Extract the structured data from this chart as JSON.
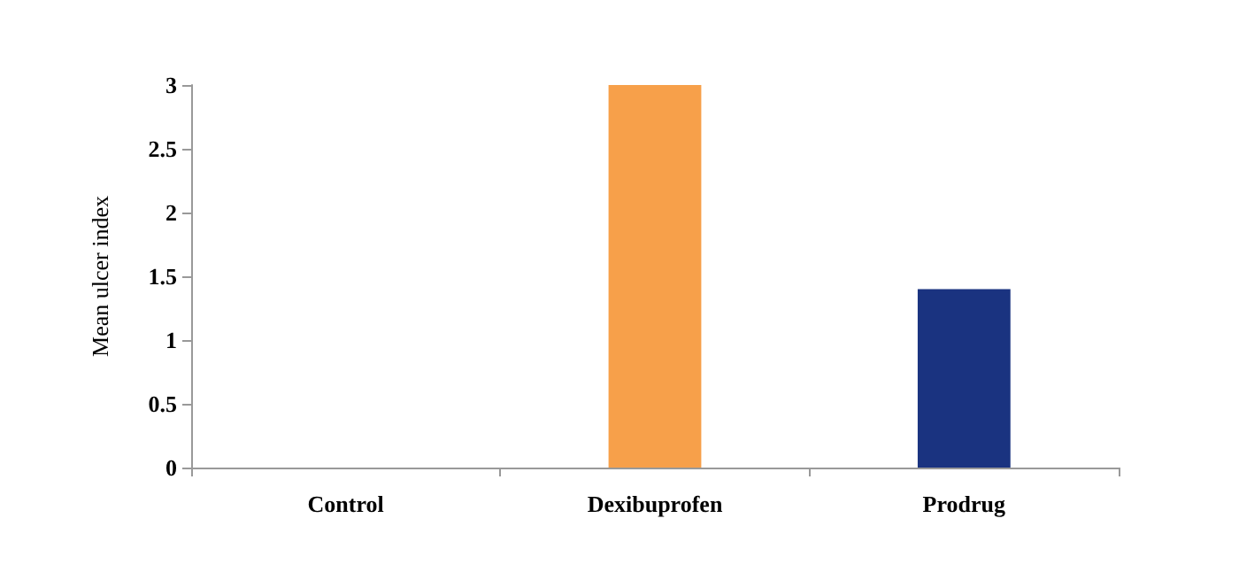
{
  "chart_data": {
    "type": "bar",
    "ylabel": "Mean ulcer index",
    "categories": [
      "Control",
      "Dexibuprofen",
      "Prodrug"
    ],
    "values": [
      0,
      3,
      1.4
    ],
    "colors": [
      "#8b0000",
      "#f7a04a",
      "#1a3380"
    ],
    "ylim": [
      0,
      3
    ],
    "yticks": [
      0,
      0.5,
      1,
      1.5,
      2,
      2.5,
      3
    ],
    "grid": false
  }
}
